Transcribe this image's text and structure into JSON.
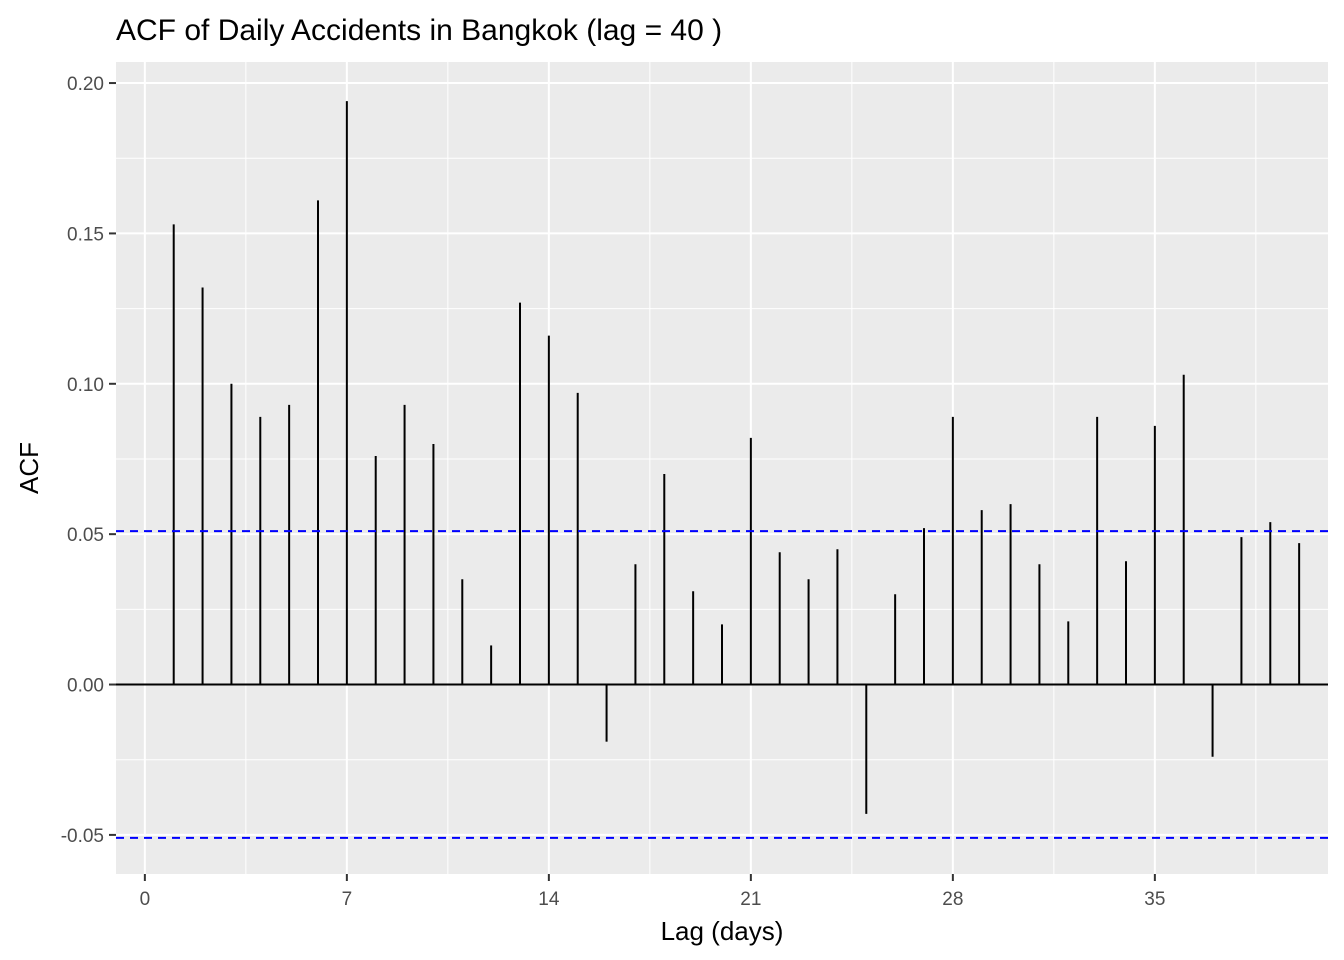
{
  "chart_data": {
    "type": "bar",
    "subtype": "acf-stem",
    "title": "ACF of Daily Accidents in Bangkok (lag = 40 )",
    "xlabel": "Lag (days)",
    "ylabel": "ACF",
    "x": [
      1,
      2,
      3,
      4,
      5,
      6,
      7,
      8,
      9,
      10,
      11,
      12,
      13,
      14,
      15,
      16,
      17,
      18,
      19,
      20,
      21,
      22,
      23,
      24,
      25,
      26,
      27,
      28,
      29,
      30,
      31,
      32,
      33,
      34,
      35,
      36,
      37,
      38,
      39,
      40
    ],
    "values": [
      0.153,
      0.132,
      0.1,
      0.089,
      0.093,
      0.161,
      0.194,
      0.076,
      0.093,
      0.08,
      0.035,
      0.013,
      0.127,
      0.116,
      0.097,
      -0.019,
      0.04,
      0.07,
      0.031,
      0.02,
      0.082,
      0.044,
      0.035,
      0.045,
      -0.043,
      0.03,
      0.052,
      0.089,
      0.058,
      0.06,
      0.04,
      0.021,
      0.089,
      0.041,
      0.086,
      0.103,
      -0.024,
      0.049,
      0.054,
      0.047
    ],
    "confidence_bound": 0.051,
    "xlim": [
      -1,
      41
    ],
    "ylim": [
      -0.063,
      0.207
    ],
    "x_ticks": [
      0,
      7,
      14,
      21,
      28,
      35
    ],
    "x_tick_labels": [
      "0",
      "7",
      "14",
      "21",
      "28",
      "35"
    ],
    "y_ticks": [
      -0.05,
      0.0,
      0.05,
      0.1,
      0.15,
      0.2
    ],
    "y_tick_labels": [
      "-0.05",
      "0.00",
      "0.05",
      "0.10",
      "0.15",
      "0.20"
    ],
    "grid": true,
    "legend": "none",
    "colors": {
      "panel_background": "#ebebeb",
      "grid_major": "#ffffff",
      "stem": "#000000",
      "zero_line": "#000000",
      "confidence_line": "#0000ff"
    }
  }
}
